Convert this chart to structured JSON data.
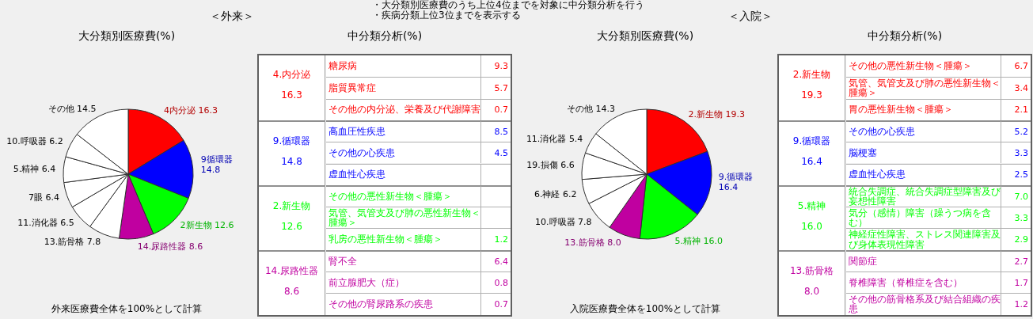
{
  "chart_data": [
    {
      "type": "pie",
      "subtitle": "＜外来＞",
      "title": "大分類別医療費(%)",
      "categories": [
        "4内分泌",
        "9循環器",
        "2新生物",
        "14.尿路性器",
        "13.筋骨格",
        "11.消化器",
        "7眼",
        "5.精神",
        "10.呼吸器",
        "その他"
      ],
      "values": [
        16.3,
        14.8,
        12.6,
        8.6,
        7.8,
        6.5,
        6.4,
        6.4,
        6.2,
        14.5
      ],
      "value_labels": [
        "16.3",
        "14.8",
        "12.6",
        "8.6",
        "7.8",
        "6.5",
        "6.4",
        "6.4",
        "6.2",
        "14.5"
      ],
      "colors": [
        "#ff0000",
        "#0000ff",
        "#00ff00",
        "#c000a0",
        "#ffffff",
        "#ffffff",
        "#ffffff",
        "#ffffff",
        "#ffffff",
        "#ffffff"
      ],
      "annotations": [
        "・大分類別医療費のうち上位4位までを対象に中分類分析を行う",
        "・疾病分類上位3位までを表示する",
        "外来医療費全体を100%として計算"
      ]
    },
    {
      "type": "other",
      "title": "中分類分析(%)",
      "categories": [
        "糖尿病",
        "脂質異常症",
        "その他の内分泌、栄養及び代謝障害",
        "高血圧性疾患",
        "その他の心疾患",
        "虚血性心疾患",
        "その他の悪性新生物＜腫瘍＞",
        "気管、気管支及び肺の悪性新生物＜腫瘍＞",
        "乳房の悪性新生物＜腫瘍＞",
        "腎不全",
        "前立腺肥大（症）",
        "その他の腎尿路系の疾患"
      ],
      "values": [
        9.3,
        5.7,
        0.7,
        8.5,
        4.5,
        null,
        null,
        null,
        1.2,
        6.4,
        0.8,
        0.7
      ],
      "value_labels": [
        "9.3",
        "5.7",
        "0.7",
        "8.5",
        "4.5",
        null,
        null,
        null,
        "1.2",
        "6.4",
        "0.8",
        "0.7"
      ],
      "annotations": [
        "4.内分泌",
        "16.3",
        "9.循環器",
        "14.8",
        "2.新生物",
        "12.6",
        "14.尿路性器",
        "8.6"
      ]
    },
    {
      "type": "pie",
      "subtitle": "＜入院＞",
      "title": "大分類別医療費(%)",
      "categories": [
        "2.新生物",
        "9.循環器",
        "5.精神",
        "13.筋骨格",
        "10.呼吸器",
        "6.神経",
        "19.損傷",
        "11.消化器",
        "その他"
      ],
      "values": [
        19.3,
        16.4,
        16.0,
        8.0,
        7.8,
        6.2,
        6.6,
        5.4,
        14.3
      ],
      "value_labels": [
        "19.3",
        "16.4",
        "16.0",
        "8.0",
        "7.8",
        "6.2",
        "6.6",
        "5.4",
        "14.3"
      ],
      "colors": [
        "#ff0000",
        "#0000ff",
        "#00ff00",
        "#c000a0",
        "#ffffff",
        "#ffffff",
        "#ffffff",
        "#ffffff",
        "#ffffff"
      ],
      "annotations": [
        "入院医療費全体を100%として計算"
      ]
    },
    {
      "type": "other",
      "title": "中分類分析(%)",
      "categories": [
        "その他の悪性新生物＜腫瘍＞",
        "気管、気管支及び肺の悪性新生物＜腫瘍＞",
        "胃の悪性新生物＜腫瘍＞",
        "その他の心疾患",
        "脳梗塞",
        "虚血性心疾患",
        "統合失調症、統合失調症型障害及び妄想性障害",
        "気分（感情）障害（躁うつ病を含む）",
        "神経症性障害、ストレス関連障害及び身体表現性障害",
        "関節症",
        "脊椎障害（脊椎症を含む）",
        "その他の筋骨格系及び結合組織の疾患"
      ],
      "values": [
        6.7,
        3.4,
        2.1,
        5.2,
        3.3,
        2.5,
        7.0,
        3.3,
        2.9,
        2.7,
        1.7,
        1.2
      ],
      "value_labels": [
        "6.7",
        "3.4",
        "2.1",
        "5.2",
        "3.3",
        "2.5",
        "7.0",
        "3.3",
        "2.9",
        "2.7",
        "1.7",
        "1.2"
      ],
      "annotations": [
        "2.新生物",
        "19.3",
        "9.循環器",
        "16.4",
        "5.精神",
        "16.0",
        "13.筋骨格",
        "8.0"
      ]
    }
  ]
}
